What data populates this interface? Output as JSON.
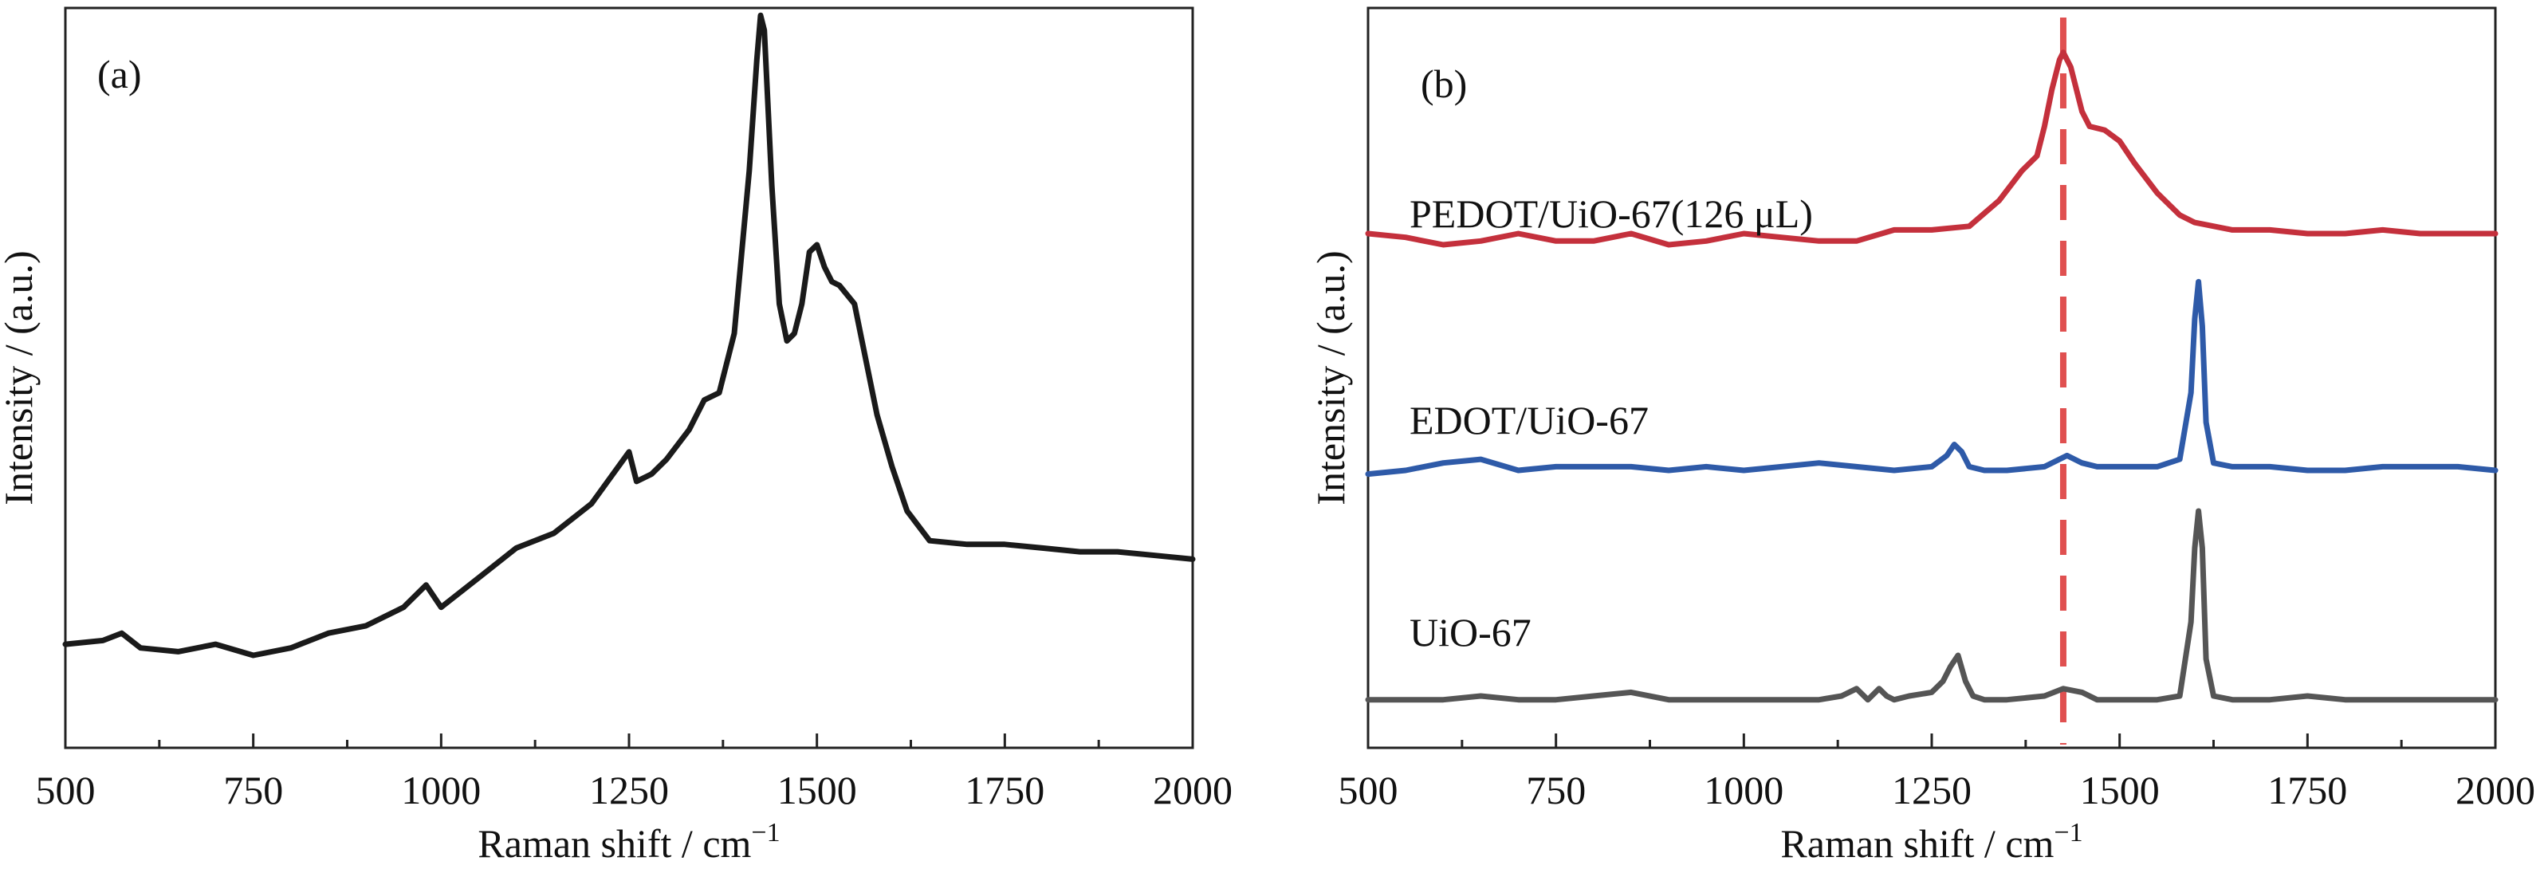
{
  "chart_data": [
    {
      "panel": "(a)",
      "type": "line",
      "xlabel": "Raman shift / cm⁻¹",
      "ylabel": "Intensity / (a.u.)",
      "xlim": [
        500,
        2000
      ],
      "xticks": [
        500,
        750,
        1000,
        1250,
        1500,
        1750,
        2000
      ],
      "ylim": [
        0,
        100
      ],
      "y_ticks_shown": false,
      "grid": false,
      "series": [
        {
          "color": "#1a1a1a",
          "x": [
            500,
            550,
            575,
            600,
            650,
            700,
            750,
            800,
            850,
            900,
            950,
            980,
            1000,
            1050,
            1100,
            1150,
            1200,
            1250,
            1260,
            1280,
            1300,
            1330,
            1350,
            1370,
            1390,
            1410,
            1420,
            1425,
            1430,
            1440,
            1450,
            1460,
            1470,
            1480,
            1490,
            1500,
            1510,
            1520,
            1530,
            1550,
            1560,
            1580,
            1600,
            1620,
            1650,
            1700,
            1750,
            1800,
            1850,
            1900,
            1950,
            2000
          ],
          "y": [
            14,
            14.5,
            15.5,
            13.5,
            13,
            14,
            12.5,
            13.5,
            15.5,
            16.5,
            19,
            22,
            19,
            23,
            27,
            29,
            33,
            40,
            36,
            37,
            39,
            43,
            47,
            48,
            56,
            78,
            93,
            99,
            97,
            76,
            60,
            55,
            56,
            60,
            67,
            68,
            65,
            63,
            62.5,
            60,
            55,
            45,
            38,
            32,
            28,
            27.5,
            27.5,
            27,
            26.5,
            26.5,
            26,
            25.5
          ]
        }
      ],
      "annotations": []
    },
    {
      "panel": "(b)",
      "type": "line",
      "xlabel": "Raman shift / cm⁻¹",
      "ylabel": "Intensity / (a.u.)",
      "xlim": [
        500,
        2000
      ],
      "xticks": [
        500,
        750,
        1000,
        1250,
        1500,
        1750,
        2000
      ],
      "ylim": [
        0,
        100
      ],
      "y_ticks_shown": false,
      "grid": false,
      "reference_line": {
        "x": 1425,
        "style": "dashed",
        "color": "#e05050"
      },
      "series": [
        {
          "name": "PEDOT/UiO-67(126 μL)",
          "color": "#c4303c",
          "x": [
            500,
            550,
            600,
            650,
            700,
            750,
            800,
            850,
            900,
            950,
            1000,
            1050,
            1100,
            1150,
            1200,
            1250,
            1300,
            1340,
            1370,
            1390,
            1400,
            1410,
            1420,
            1425,
            1435,
            1450,
            1460,
            1480,
            1500,
            1520,
            1550,
            1580,
            1600,
            1650,
            1700,
            1750,
            1800,
            1850,
            1900,
            1950,
            2000
          ],
          "y": [
            69.5,
            69,
            68,
            68.5,
            69.5,
            68.5,
            68.5,
            69.5,
            68,
            68.5,
            69.5,
            69,
            68.5,
            68.5,
            70,
            70,
            70.5,
            74,
            78,
            80,
            84,
            89,
            93,
            94,
            92,
            86,
            84,
            83.5,
            82,
            79,
            75,
            72,
            71,
            70,
            70,
            69.5,
            69.5,
            70,
            69.5,
            69.5,
            69.5
          ]
        },
        {
          "name": "EDOT/UiO-67",
          "color": "#2e5aa8",
          "x": [
            500,
            550,
            600,
            650,
            700,
            750,
            800,
            850,
            900,
            950,
            1000,
            1050,
            1100,
            1150,
            1200,
            1250,
            1270,
            1280,
            1290,
            1300,
            1320,
            1350,
            1400,
            1430,
            1450,
            1470,
            1500,
            1550,
            1580,
            1595,
            1600,
            1605,
            1610,
            1615,
            1625,
            1650,
            1700,
            1750,
            1800,
            1850,
            1900,
            1950,
            2000
          ],
          "y": [
            37,
            37.5,
            38.5,
            39,
            37.5,
            38,
            38,
            38,
            37.5,
            38,
            37.5,
            38,
            38.5,
            38,
            37.5,
            38,
            39.5,
            41,
            40,
            38,
            37.5,
            37.5,
            38,
            39.5,
            38.5,
            38,
            38,
            38,
            39,
            48,
            58,
            63,
            57,
            44,
            38.5,
            38,
            38,
            37.5,
            37.5,
            38,
            38,
            38,
            37.5
          ]
        },
        {
          "name": "UiO-67",
          "color": "#555555",
          "x": [
            500,
            550,
            600,
            650,
            700,
            750,
            800,
            850,
            900,
            950,
            1000,
            1050,
            1100,
            1130,
            1150,
            1165,
            1180,
            1190,
            1200,
            1220,
            1250,
            1265,
            1275,
            1285,
            1295,
            1305,
            1320,
            1350,
            1400,
            1425,
            1450,
            1470,
            1500,
            1550,
            1580,
            1595,
            1600,
            1605,
            1610,
            1615,
            1625,
            1650,
            1700,
            1750,
            1800,
            1850,
            1900,
            1950,
            2000
          ],
          "y": [
            6.5,
            6.5,
            6.5,
            7,
            6.5,
            6.5,
            7,
            7.5,
            6.5,
            6.5,
            6.5,
            6.5,
            6.5,
            7,
            8,
            6.5,
            8,
            7,
            6.5,
            7,
            7.5,
            9,
            11,
            12.5,
            9,
            7,
            6.5,
            6.5,
            7,
            8,
            7.5,
            6.5,
            6.5,
            6.5,
            7,
            17,
            27,
            32,
            27,
            12,
            7,
            6.5,
            6.5,
            7,
            6.5,
            6.5,
            6.5,
            6.5,
            6.5
          ]
        }
      ],
      "annotations": []
    }
  ],
  "panels": [
    {
      "label": "(a)",
      "xlabel_main": "Raman shift / cm",
      "xlabel_sup": "−1",
      "ylabel": "Intensity / (a.u.)",
      "tick_labels": [
        "500",
        "750",
        "1000",
        "1250",
        "1500",
        "1750",
        "2000"
      ]
    },
    {
      "label": "(b)",
      "xlabel_main": "Raman shift / cm",
      "xlabel_sup": "−1",
      "ylabel": "Intensity / (a.u.)",
      "tick_labels": [
        "500",
        "750",
        "1000",
        "1250",
        "1500",
        "1750",
        "2000"
      ],
      "series_labels": [
        "PEDOT/UiO-67(126 μL)",
        "EDOT/UiO-67",
        "UiO-67"
      ]
    }
  ]
}
